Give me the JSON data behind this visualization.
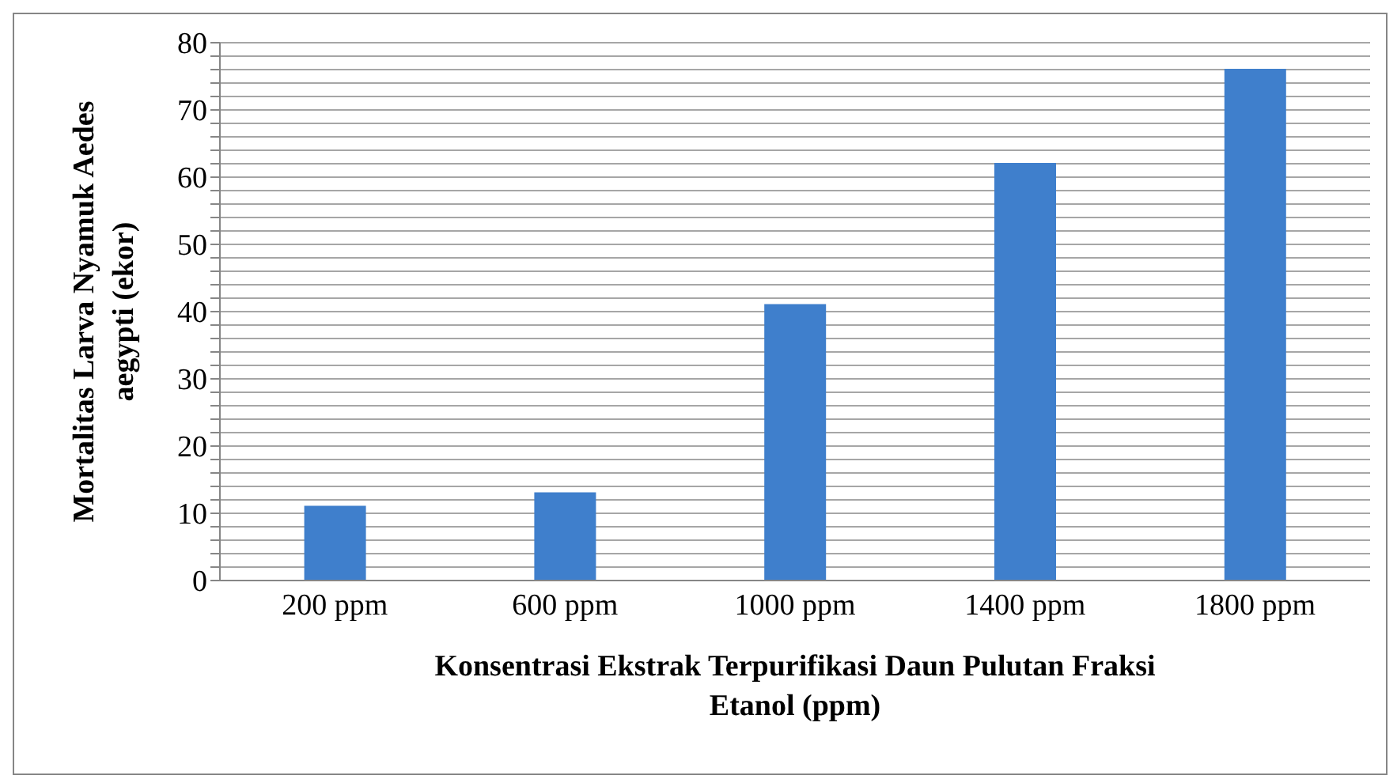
{
  "chart_data": {
    "type": "bar",
    "xlabel": "Konsentrasi Ekstrak Terpurifikasi Daun Pulutan Fraksi Etanol (ppm)",
    "ylabel": "Mortalitas Larva Nyamuk Aedes aegypti (ekor)",
    "categories": [
      "200 ppm",
      "600 ppm",
      "1000 ppm",
      "1400 ppm",
      "1800 ppm"
    ],
    "values": [
      11,
      13,
      41,
      62,
      76
    ],
    "color": "#3f7fcc",
    "ylim": [
      0,
      80
    ],
    "yticks": [
      0,
      {
        "value": 2,
        "label": null
      },
      {
        "value": 4,
        "label": null
      },
      {
        "value": 6,
        "label": null
      },
      {
        "value": 8,
        "label": null
      },
      10,
      {
        "value": 12,
        "label": null
      },
      {
        "value": 14,
        "label": null
      },
      {
        "value": 16,
        "label": null
      },
      {
        "value": 18,
        "label": null
      },
      20,
      {
        "value": 22,
        "label": null
      },
      {
        "value": 24,
        "label": null
      },
      {
        "value": 26,
        "label": null
      },
      {
        "value": 28,
        "label": null
      },
      30,
      {
        "value": 32,
        "label": null
      },
      {
        "value": 34,
        "label": null
      },
      {
        "value": 36,
        "label": null
      },
      {
        "value": 38,
        "label": null
      },
      40,
      {
        "value": 42,
        "label": null
      },
      {
        "value": 44,
        "label": null
      },
      {
        "value": 46,
        "label": null
      },
      {
        "value": 48,
        "label": null
      },
      50,
      {
        "value": 52,
        "label": null
      },
      {
        "value": 54,
        "label": null
      },
      {
        "value": 56,
        "label": null
      },
      {
        "value": 58,
        "label": null
      },
      60,
      {
        "value": 62,
        "label": null
      },
      {
        "value": 64,
        "label": null
      },
      {
        "value": 66,
        "label": null
      },
      {
        "value": 68,
        "label": null
      },
      70,
      {
        "value": 72,
        "label": null
      },
      {
        "value": 74,
        "label": null
      },
      {
        "value": 76,
        "label": null
      },
      {
        "value": 78,
        "label": null
      },
      80
    ],
    "grid": "y"
  }
}
